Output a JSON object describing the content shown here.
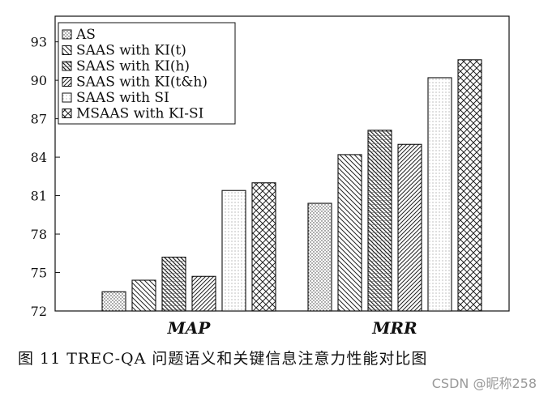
{
  "chart_data": {
    "type": "bar",
    "categories": [
      "MAP",
      "MRR"
    ],
    "series": [
      {
        "name": "AS",
        "values": [
          73.5,
          80.4
        ]
      },
      {
        "name": "SAAS with KI(t)",
        "values": [
          74.4,
          84.2
        ]
      },
      {
        "name": "SAAS with KI(h)",
        "values": [
          76.2,
          86.1
        ]
      },
      {
        "name": "SAAS with KI(t&h)",
        "values": [
          74.7,
          85.0
        ]
      },
      {
        "name": "SAAS with SI",
        "values": [
          81.4,
          90.2
        ]
      },
      {
        "name": "MSAAS with KI-SI",
        "values": [
          82.0,
          91.6
        ]
      }
    ],
    "ylim": [
      72,
      95
    ],
    "yticks": [
      "72",
      "75",
      "78",
      "81",
      "84",
      "87",
      "90",
      "93"
    ],
    "legend_position": "top-left",
    "grid": false
  },
  "caption": "图 11   TREC-QA 问题语义和关键信息注意力性能对比图",
  "watermark": "CSDN @昵称258"
}
